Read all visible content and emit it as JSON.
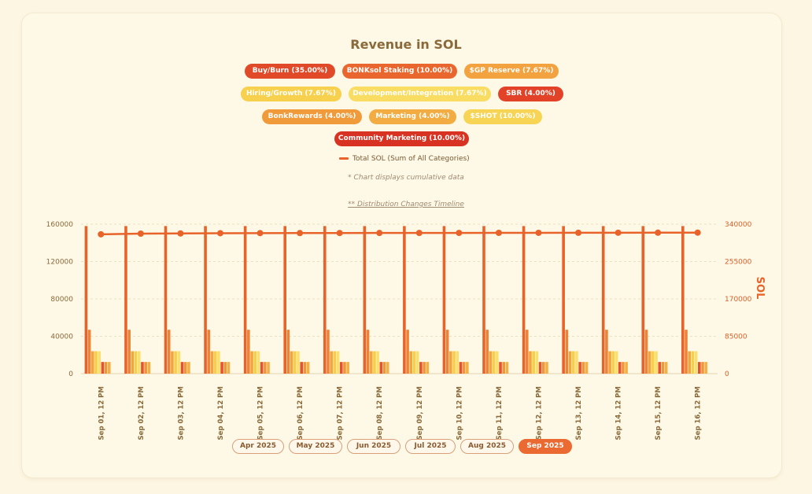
{
  "chart_data": {
    "type": "bar",
    "title": "Revenue in SOL",
    "categories": [
      "Sep 01, 12 PM",
      "Sep 02, 12 PM",
      "Sep 03, 12 PM",
      "Sep 04, 12 PM",
      "Sep 05, 12 PM",
      "Sep 06, 12 PM",
      "Sep 07, 12 PM",
      "Sep 08, 12 PM",
      "Sep 09, 12 PM",
      "Sep 10, 12 PM",
      "Sep 11, 12 PM",
      "Sep 12, 12 PM",
      "Sep 13, 12 PM",
      "Sep 14, 12 PM",
      "Sep 15, 12 PM",
      "Sep 16, 12 PM"
    ],
    "left_axis": {
      "ticks": [
        "0",
        "40000",
        "80000",
        "120000",
        "160000"
      ],
      "ylim": [
        0,
        160000
      ]
    },
    "right_axis": {
      "label": "SOL",
      "ticks": [
        "0",
        "85000",
        "170000",
        "255000",
        "340000"
      ],
      "ylim": [
        0,
        340000
      ]
    },
    "series": [
      {
        "name": "Buy/Burn (35.00%)",
        "color": "#e8632a",
        "values": [
          158000,
          158000,
          158000,
          158000,
          158000,
          158000,
          158000,
          158000,
          158000,
          158000,
          158000,
          158000,
          158000,
          158000,
          158000,
          158000
        ]
      },
      {
        "name": "BONKsol Staking (10.00%)",
        "color": "#ee8236",
        "values": [
          47000,
          47000,
          47000,
          47000,
          47000,
          47000,
          47000,
          47000,
          47000,
          47000,
          47000,
          47000,
          47000,
          47000,
          47000,
          47000
        ]
      },
      {
        "name": "$GP Reserve (7.67%)",
        "color": "#f3a43c",
        "values": [
          24000,
          24000,
          24000,
          24000,
          24000,
          24000,
          24000,
          24000,
          24000,
          24000,
          24000,
          24000,
          24000,
          24000,
          24000,
          24000
        ]
      },
      {
        "name": "Hiring/Growth (7.67%)",
        "color": "#f7cd4a",
        "values": [
          24000,
          24000,
          24000,
          24000,
          24000,
          24000,
          24000,
          24000,
          24000,
          24000,
          24000,
          24000,
          24000,
          24000,
          24000,
          24000
        ]
      },
      {
        "name": "Development/Integration (7.67%)",
        "color": "#fae06b",
        "values": [
          24000,
          24000,
          24000,
          24000,
          24000,
          24000,
          24000,
          24000,
          24000,
          24000,
          24000,
          24000,
          24000,
          24000,
          24000,
          24000
        ]
      },
      {
        "name": "SBR (4.00%)",
        "color": "#e6522e",
        "values": [
          12500,
          12500,
          12500,
          12500,
          12500,
          12500,
          12500,
          12500,
          12500,
          12500,
          12500,
          12500,
          12500,
          12500,
          12500,
          12500
        ]
      },
      {
        "name": "BonkRewards (4.00%)",
        "color": "#f0963a",
        "values": [
          12500,
          12500,
          12500,
          12500,
          12500,
          12500,
          12500,
          12500,
          12500,
          12500,
          12500,
          12500,
          12500,
          12500,
          12500,
          12500
        ]
      },
      {
        "name": "Marketing (4.00%)",
        "color": "#f4b044",
        "values": [
          12500,
          12500,
          12500,
          12500,
          12500,
          12500,
          12500,
          12500,
          12500,
          12500,
          12500,
          12500,
          12500,
          12500,
          12500,
          12500
        ]
      },
      {
        "name": "$SHOT (10.00%)",
        "color": "#f8d458",
        "values": [
          0,
          0,
          0,
          0,
          0,
          0,
          0,
          0,
          0,
          0,
          0,
          0,
          0,
          0,
          0,
          0
        ]
      },
      {
        "name": "Community Marketing (10.00%)",
        "color": "#dc3a22",
        "values": [
          0,
          0,
          0,
          0,
          0,
          0,
          0,
          0,
          0,
          0,
          0,
          0,
          0,
          0,
          0,
          0
        ]
      }
    ],
    "line": {
      "name": "Total SOL (Sum of All Categories)",
      "color": "#e8632a",
      "axis": "right",
      "values": [
        317000,
        318500,
        319000,
        319500,
        319700,
        319800,
        319900,
        320000,
        320100,
        320200,
        320300,
        320400,
        320500,
        320600,
        320700,
        320800
      ]
    },
    "grid": true,
    "legend_position": "top"
  },
  "legend": [
    {
      "label": "Buy/Burn (35.00%)",
      "bg": "#e04a28",
      "fg": "#ffffff"
    },
    {
      "label": "BONKsol Staking (10.00%)",
      "bg": "#e9672e",
      "fg": "#ffffff"
    },
    {
      "label": "$GP Reserve (7.67%)",
      "bg": "#f2a23e",
      "fg": "#ffffff"
    },
    {
      "label": "Hiring/Growth (7.67%)",
      "bg": "#f7d04e",
      "fg": "#ffffff"
    },
    {
      "label": "Development/Integration (7.67%)",
      "bg": "#f9dc62",
      "fg": "#ffffff"
    },
    {
      "label": "SBR (4.00%)",
      "bg": "#e24228",
      "fg": "#ffffff"
    },
    {
      "label": "BonkRewards (4.00%)",
      "bg": "#f09a3a",
      "fg": "#ffffff"
    },
    {
      "label": "Marketing (4.00%)",
      "bg": "#f3ac42",
      "fg": "#ffffff"
    },
    {
      "label": "$SHOT (10.00%)",
      "bg": "#f8d454",
      "fg": "#ffffff"
    },
    {
      "label": "Community Marketing (10.00%)",
      "bg": "#d83222",
      "fg": "#ffffff"
    }
  ],
  "legend_total": "Total SOL (Sum of All Categories)",
  "note_cumulative": "* Chart displays cumulative data",
  "note_timeline": "** Distribution Changes Timeline",
  "months": [
    {
      "label": "Apr 2025",
      "active": false
    },
    {
      "label": "May 2025",
      "active": false
    },
    {
      "label": "Jun 2025",
      "active": false
    },
    {
      "label": "Jul 2025",
      "active": false
    },
    {
      "label": "Aug 2025",
      "active": false
    },
    {
      "label": "Sep 2025",
      "active": true
    }
  ]
}
